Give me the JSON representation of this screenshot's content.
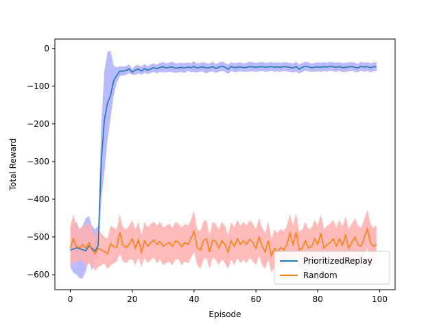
{
  "chart_data": {
    "type": "line",
    "title": "",
    "xlabel": "Episode",
    "ylabel": "Total Reward",
    "xlim": [
      -5,
      105
    ],
    "ylim": [
      -640,
      25
    ],
    "xticks": [
      0,
      20,
      40,
      60,
      80,
      100
    ],
    "yticks": [
      0,
      -100,
      -200,
      -300,
      -400,
      -500,
      -600
    ],
    "grid": false,
    "legend_position": "lower-right",
    "series": [
      {
        "name": "PrioritizedReplay",
        "color": "#1f77b4",
        "band_color": "#b3b3ff",
        "x": [
          0,
          1,
          2,
          3,
          4,
          5,
          6,
          7,
          8,
          9,
          10,
          11,
          12,
          13,
          14,
          15,
          16,
          17,
          18,
          19,
          20,
          21,
          22,
          23,
          24,
          25,
          26,
          27,
          28,
          29,
          30,
          31,
          32,
          33,
          34,
          35,
          36,
          37,
          38,
          39,
          40,
          41,
          42,
          43,
          44,
          45,
          46,
          47,
          48,
          49,
          50,
          51,
          52,
          53,
          54,
          55,
          56,
          57,
          58,
          59,
          60,
          61,
          62,
          63,
          64,
          65,
          66,
          67,
          68,
          69,
          70,
          71,
          72,
          73,
          74,
          75,
          76,
          77,
          78,
          79,
          80,
          81,
          82,
          83,
          84,
          85,
          86,
          87,
          88,
          89,
          90,
          91,
          92,
          93,
          94,
          95,
          96,
          97,
          98,
          99
        ],
        "y": [
          -535,
          -532,
          -529,
          -531,
          -534,
          -537,
          -524,
          -530,
          -538,
          -522,
          -300,
          -190,
          -145,
          -125,
          -85,
          -72,
          -60,
          -60,
          -59,
          -54,
          -63,
          -57,
          -55,
          -60,
          -53,
          -58,
          -54,
          -51,
          -54,
          -50,
          -49,
          -52,
          -50,
          -49,
          -53,
          -51,
          -50,
          -52,
          -49,
          -51,
          -48,
          -52,
          -50,
          -49,
          -52,
          -51,
          -48,
          -53,
          -50,
          -47,
          -50,
          -55,
          -48,
          -51,
          -50,
          -49,
          -51,
          -50,
          -48,
          -49,
          -50,
          -49,
          -48,
          -50,
          -49,
          -48,
          -50,
          -49,
          -50,
          -48,
          -49,
          -50,
          -52,
          -48,
          -55,
          -50,
          -47,
          -49,
          -51,
          -50,
          -49,
          -50,
          -48,
          -50,
          -47,
          -49,
          -50,
          -48,
          -51,
          -50,
          -49,
          -48,
          -50,
          -52,
          -47,
          -50,
          -48,
          -51,
          -49,
          -48
        ],
        "lower": [
          -580,
          -595,
          -600,
          -610,
          -610,
          -590,
          -560,
          -590,
          -560,
          -560,
          -400,
          -330,
          -245,
          -185,
          -125,
          -92,
          -73,
          -72,
          -70,
          -66,
          -70,
          -70,
          -66,
          -70,
          -65,
          -68,
          -65,
          -62,
          -66,
          -62,
          -63,
          -64,
          -62,
          -63,
          -65,
          -63,
          -62,
          -65,
          -60,
          -63,
          -62,
          -64,
          -61,
          -62,
          -66,
          -62,
          -61,
          -65,
          -62,
          -60,
          -62,
          -68,
          -60,
          -63,
          -62,
          -61,
          -62,
          -62,
          -61,
          -61,
          -62,
          -61,
          -60,
          -62,
          -61,
          -60,
          -62,
          -61,
          -62,
          -60,
          -61,
          -62,
          -64,
          -61,
          -67,
          -62,
          -59,
          -61,
          -62,
          -62,
          -61,
          -62,
          -60,
          -62,
          -59,
          -61,
          -62,
          -60,
          -63,
          -62,
          -61,
          -60,
          -62,
          -63,
          -59,
          -62,
          -60,
          -63,
          -61,
          -60
        ],
        "upper": [
          -470,
          -470,
          -460,
          -480,
          -470,
          -450,
          -445,
          -470,
          -480,
          -470,
          -200,
          -60,
          -10,
          -5,
          -45,
          -50,
          -47,
          -48,
          -47,
          -42,
          -55,
          -45,
          -44,
          -48,
          -41,
          -47,
          -42,
          -40,
          -43,
          -38,
          -36,
          -40,
          -38,
          -35,
          -40,
          -39,
          -38,
          -39,
          -37,
          -39,
          -34,
          -40,
          -38,
          -36,
          -39,
          -40,
          -35,
          -41,
          -38,
          -34,
          -38,
          -43,
          -36,
          -39,
          -38,
          -37,
          -40,
          -38,
          -35,
          -37,
          -38,
          -37,
          -36,
          -38,
          -37,
          -36,
          -38,
          -37,
          -38,
          -36,
          -37,
          -38,
          -40,
          -35,
          -43,
          -38,
          -35,
          -37,
          -40,
          -38,
          -37,
          -38,
          -36,
          -38,
          -35,
          -37,
          -38,
          -36,
          -39,
          -38,
          -37,
          -36,
          -38,
          -41,
          -35,
          -38,
          -36,
          -39,
          -37,
          -36
        ]
      },
      {
        "name": "Random",
        "color": "#ff7f0e",
        "band_color": "#ffb3b3",
        "x": [
          0,
          1,
          2,
          3,
          4,
          5,
          6,
          7,
          8,
          9,
          10,
          11,
          12,
          13,
          14,
          15,
          16,
          17,
          18,
          19,
          20,
          21,
          22,
          23,
          24,
          25,
          26,
          27,
          28,
          29,
          30,
          31,
          32,
          33,
          34,
          35,
          36,
          37,
          38,
          39,
          40,
          41,
          42,
          43,
          44,
          45,
          46,
          47,
          48,
          49,
          50,
          51,
          52,
          53,
          54,
          55,
          56,
          57,
          58,
          59,
          60,
          61,
          62,
          63,
          64,
          65,
          66,
          67,
          68,
          69,
          70,
          71,
          72,
          73,
          74,
          75,
          76,
          77,
          78,
          79,
          80,
          81,
          82,
          83,
          84,
          85,
          86,
          87,
          88,
          89,
          90,
          91,
          92,
          93,
          94,
          95,
          96,
          97,
          98,
          99
        ],
        "y": [
          -530,
          -505,
          -525,
          -528,
          -520,
          -530,
          -515,
          -535,
          -545,
          -530,
          -535,
          -538,
          -545,
          -518,
          -525,
          -528,
          -488,
          -522,
          -528,
          -520,
          -505,
          -530,
          -508,
          -540,
          -510,
          -525,
          -515,
          -508,
          -520,
          -512,
          -525,
          -520,
          -515,
          -525,
          -510,
          -515,
          -526,
          -515,
          -520,
          -505,
          -485,
          -528,
          -535,
          -510,
          -505,
          -540,
          -508,
          -512,
          -530,
          -510,
          -520,
          -540,
          -510,
          -525,
          -505,
          -520,
          -510,
          -520,
          -506,
          -515,
          -530,
          -500,
          -525,
          -540,
          -510,
          -550,
          -530,
          -540,
          -528,
          -535,
          -520,
          -490,
          -520,
          -487,
          -535,
          -530,
          -510,
          -530,
          -525,
          -505,
          -520,
          -490,
          -530,
          -520,
          -515,
          -505,
          -525,
          -505,
          -522,
          -495,
          -530,
          -515,
          -500,
          -520,
          -525,
          -503,
          -478,
          -515,
          -525,
          -520
        ],
        "lower": [
          -580,
          -565,
          -570,
          -560,
          -565,
          -580,
          -570,
          -575,
          -590,
          -580,
          -575,
          -570,
          -585,
          -575,
          -570,
          -565,
          -545,
          -565,
          -570,
          -560,
          -560,
          -575,
          -555,
          -580,
          -555,
          -570,
          -560,
          -555,
          -570,
          -560,
          -575,
          -570,
          -565,
          -575,
          -560,
          -560,
          -575,
          -565,
          -570,
          -555,
          -540,
          -575,
          -585,
          -560,
          -555,
          -585,
          -555,
          -560,
          -575,
          -560,
          -570,
          -585,
          -560,
          -575,
          -555,
          -570,
          -560,
          -570,
          -555,
          -565,
          -575,
          -550,
          -575,
          -585,
          -560,
          -595,
          -580,
          -585,
          -575,
          -580,
          -570,
          -540,
          -570,
          -540,
          -585,
          -580,
          -560,
          -580,
          -575,
          -555,
          -570,
          -540,
          -575,
          -570,
          -565,
          -555,
          -575,
          -555,
          -572,
          -545,
          -580,
          -565,
          -550,
          -570,
          -575,
          -553,
          -528,
          -565,
          -575,
          -570
        ],
        "upper": [
          -470,
          -440,
          -470,
          -480,
          -470,
          -470,
          -460,
          -480,
          -500,
          -480,
          -490,
          -500,
          -505,
          -470,
          -475,
          -480,
          -440,
          -475,
          -480,
          -470,
          -455,
          -480,
          -460,
          -495,
          -460,
          -475,
          -465,
          -460,
          -470,
          -460,
          -475,
          -470,
          -465,
          -475,
          -460,
          -465,
          -475,
          -465,
          -470,
          -455,
          -430,
          -480,
          -485,
          -460,
          -455,
          -495,
          -460,
          -465,
          -480,
          -460,
          -470,
          -495,
          -460,
          -475,
          -455,
          -470,
          -460,
          -470,
          -456,
          -465,
          -480,
          -450,
          -475,
          -490,
          -460,
          -505,
          -480,
          -490,
          -478,
          -485,
          -470,
          -440,
          -470,
          -437,
          -485,
          -480,
          -460,
          -480,
          -475,
          -455,
          -470,
          -440,
          -480,
          -470,
          -465,
          -455,
          -475,
          -455,
          -472,
          -445,
          -480,
          -465,
          -450,
          -470,
          -475,
          -453,
          -428,
          -465,
          -475,
          -470
        ]
      }
    ]
  }
}
